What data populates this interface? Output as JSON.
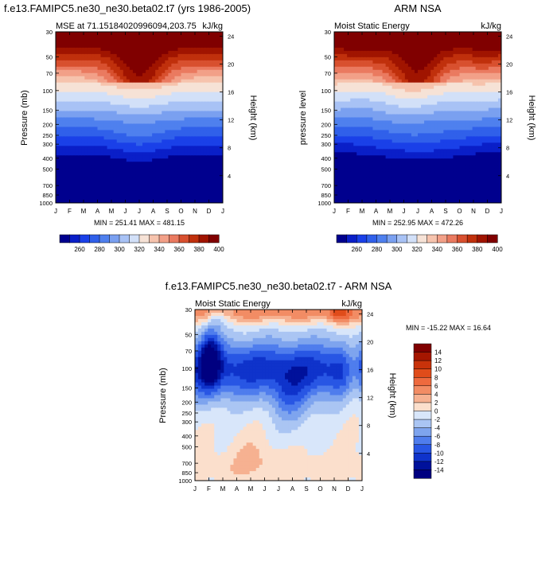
{
  "chart_data": [
    {
      "type": "heatmap",
      "title": "f.e13.FAMIPC5.ne30_ne30.beta02.t7 (yrs 1986-2005)",
      "subtitle_left": "MSE at 71.15184020996094,203.75",
      "subtitle_right": "kJ/kg",
      "ylabel": "Pressure (mb)",
      "ylabel_right": "Height (km)",
      "x_ticks": [
        "J",
        "F",
        "M",
        "A",
        "M",
        "J",
        "J",
        "A",
        "S",
        "O",
        "N",
        "D",
        "J"
      ],
      "y_ticks": [
        "30",
        "50",
        "70",
        "100",
        "150",
        "200",
        "250",
        "300",
        "400",
        "500",
        "700",
        "850",
        "1000"
      ],
      "y_ticks_right": [
        "24",
        "20",
        "16",
        "12",
        "8",
        "4"
      ],
      "stats": "MIN = 251.41   MAX = 481.15",
      "colorbar_labels": [
        "260",
        "280",
        "300",
        "320",
        "340",
        "360",
        "380",
        "400"
      ]
    },
    {
      "type": "heatmap",
      "title": "ARM NSA",
      "subtitle_left": "Moist Static Energy",
      "subtitle_right": "kJ/kg",
      "ylabel": "pressure level",
      "ylabel_right": "Height (km)",
      "x_ticks": [
        "J",
        "F",
        "M",
        "A",
        "M",
        "J",
        "J",
        "A",
        "S",
        "O",
        "N",
        "D",
        "J"
      ],
      "y_ticks": [
        "30",
        "50",
        "70",
        "100",
        "150",
        "200",
        "250",
        "300",
        "400",
        "500",
        "700",
        "850",
        "1000"
      ],
      "y_ticks_right": [
        "24",
        "20",
        "16",
        "12",
        "8",
        "4"
      ],
      "stats": "MIN = 252.95   MAX = 472.26",
      "colorbar_labels": [
        "260",
        "280",
        "300",
        "320",
        "340",
        "360",
        "380",
        "400"
      ]
    },
    {
      "type": "heatmap",
      "title": "f.e13.FAMIPC5.ne30_ne30.beta02.t7 - ARM NSA",
      "subtitle_left": "Moist Static Energy",
      "subtitle_right": "kJ/kg",
      "ylabel": "Pressure (mb)",
      "ylabel_right": "Height (km)",
      "x_ticks": [
        "J",
        "F",
        "M",
        "A",
        "M",
        "J",
        "J",
        "A",
        "S",
        "O",
        "N",
        "D",
        "J"
      ],
      "y_ticks": [
        "30",
        "50",
        "70",
        "100",
        "150",
        "200",
        "250",
        "300",
        "400",
        "500",
        "700",
        "850",
        "1000"
      ],
      "y_ticks_right": [
        "24",
        "20",
        "16",
        "12",
        "8",
        "4"
      ],
      "stats": "MIN = -15.22   MAX =  16.64",
      "colorbar_labels": [
        "14",
        "12",
        "10",
        "8",
        "6",
        "4",
        "2",
        "0",
        "-2",
        "-4",
        "-6",
        "-8",
        "-10",
        "-12",
        "-14"
      ]
    }
  ],
  "colors": {
    "seq": [
      "#00008e",
      "#0a1fc8",
      "#1a40e8",
      "#3060ea",
      "#4f80ee",
      "#7aa0f0",
      "#a8c2f5",
      "#d2e0f8",
      "#f6e2d6",
      "#f6c3ad",
      "#f2a088",
      "#ea7a60",
      "#d8502f",
      "#c0300c",
      "#a01400",
      "#800000"
    ],
    "div": [
      "#800000",
      "#a51600",
      "#c8320a",
      "#e04c1a",
      "#ee6a3e",
      "#f28c64",
      "#f6b191",
      "#fbdfcc",
      "#d8e6fa",
      "#aac5f3",
      "#7ea4ee",
      "#4f7ded",
      "#2856e4",
      "#0f33cb",
      "#00119b",
      "#000080"
    ]
  }
}
